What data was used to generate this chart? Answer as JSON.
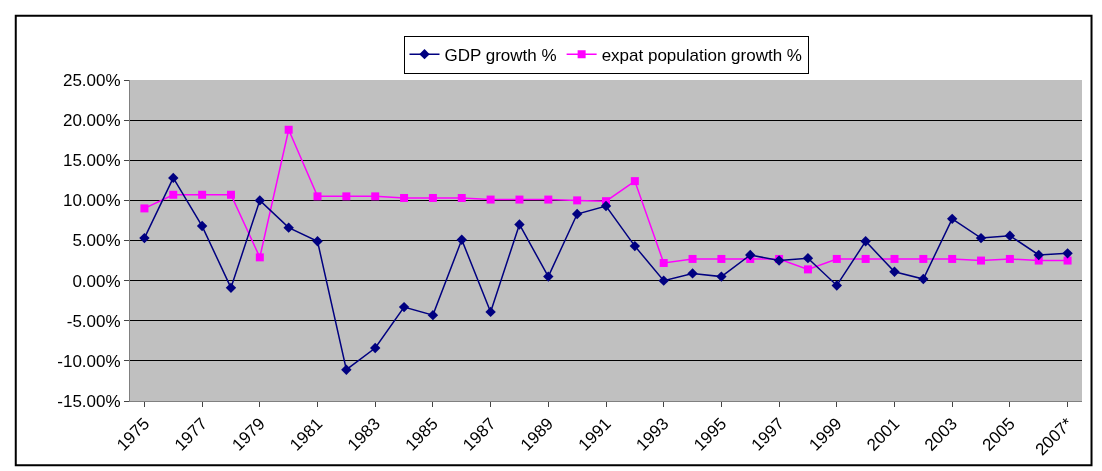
{
  "chart_data": {
    "type": "line",
    "categories": [
      "1975",
      null,
      "1977",
      null,
      "1979",
      null,
      "1981",
      null,
      "1983",
      null,
      "1985",
      null,
      "1987",
      null,
      "1989",
      null,
      "1991",
      null,
      "1993",
      null,
      "1995",
      null,
      "1997",
      null,
      "1999",
      null,
      "2001",
      null,
      "2003",
      null,
      "2005",
      null,
      "2007*"
    ],
    "series": [
      {
        "name": "GDP growth %",
        "color": "#000080",
        "marker": "diamond",
        "values": [
          5.3,
          12.8,
          6.8,
          -0.9,
          10.0,
          6.6,
          4.9,
          -11.1,
          -8.4,
          -3.3,
          -4.3,
          5.1,
          -3.9,
          7.0,
          0.5,
          8.3,
          9.3,
          4.3,
          0.0,
          0.9,
          0.5,
          3.2,
          2.5,
          2.8,
          -0.6,
          4.9,
          1.1,
          0.2,
          7.7,
          5.3,
          5.6,
          3.2,
          3.4
        ]
      },
      {
        "name": "expat population growth %",
        "color": "#ff00ff",
        "marker": "square",
        "values": [
          9.0,
          10.7,
          10.7,
          10.7,
          2.9,
          18.8,
          10.5,
          10.5,
          10.5,
          10.3,
          10.3,
          10.3,
          10.1,
          10.1,
          10.1,
          10.0,
          9.9,
          12.4,
          2.2,
          2.7,
          2.7,
          2.7,
          2.7,
          1.4,
          2.7,
          2.7,
          2.7,
          2.7,
          2.7,
          2.5,
          2.7,
          2.5,
          2.5
        ]
      }
    ],
    "ylim": [
      -15,
      25
    ],
    "yticks": [
      {
        "value": -15,
        "label": "-15.00%"
      },
      {
        "value": -10,
        "label": "-10.00%"
      },
      {
        "value": -5,
        "label": "-5.00%"
      },
      {
        "value": 0,
        "label": "0.00%"
      },
      {
        "value": 5,
        "label": "5.00%"
      },
      {
        "value": 10,
        "label": "10.00%"
      },
      {
        "value": 15,
        "label": "15.00%"
      },
      {
        "value": 20,
        "label": "20.00%"
      },
      {
        "value": 25,
        "label": "25.00%"
      }
    ],
    "grid": "y",
    "legend": "top",
    "line_style": "solid"
  }
}
